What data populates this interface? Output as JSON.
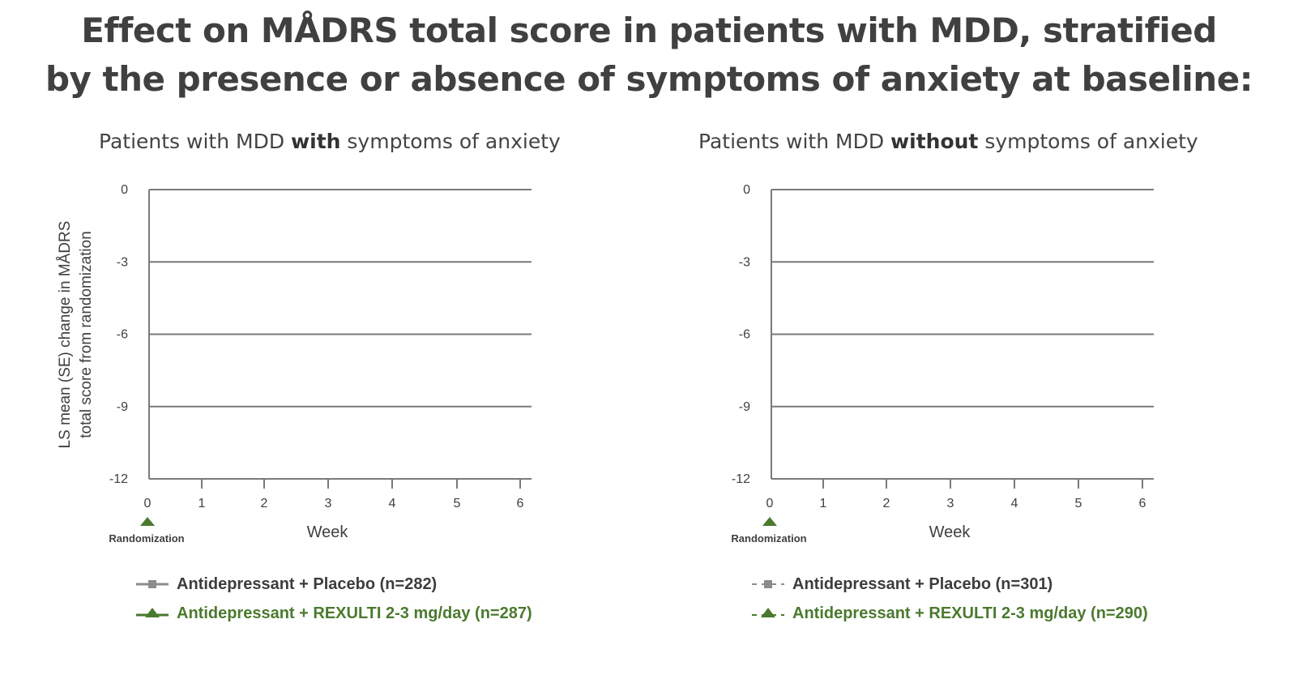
{
  "header": {
    "title_line1": "Effect on MÅDRS total score in patients with MDD, stratified",
    "title_line2": "by the presence or absence of symptoms of anxiety at baseline:"
  },
  "colors": {
    "placebo": "#8c8c8c",
    "rexulti": "#4a7a2e",
    "grid": "#7a7a7a",
    "text": "#404040"
  },
  "ylabel_line1": "LS mean (SE) change in MÅDRS",
  "ylabel_line2": "total score from randomization",
  "chart_data": [
    {
      "type": "line",
      "title_pre": "Patients with MDD ",
      "title_bold": "with",
      "title_post": " symptoms of anxiety",
      "xlabel": "Week",
      "ylabel": "LS mean (SE) change in MÅDRS total score from randomization",
      "x_ticks": [
        "0",
        "1",
        "2",
        "3",
        "4",
        "5",
        "6"
      ],
      "y_ticks": [
        "0",
        "-3",
        "-6",
        "-9",
        "-12"
      ],
      "xlim": [
        0,
        6
      ],
      "ylim": [
        -12,
        0
      ],
      "grid": true,
      "x_marker": {
        "x": 0,
        "label": "Randomization"
      },
      "series": [
        {
          "name": "Antidepressant + Placebo (n=282)",
          "style": "solid",
          "marker": "square",
          "values": []
        },
        {
          "name": "Antidepressant + REXULTI 2-3 mg/day (n=287)",
          "style": "solid",
          "marker": "triangle",
          "values": []
        }
      ]
    },
    {
      "type": "line",
      "title_pre": "Patients with MDD ",
      "title_bold": "without",
      "title_post": " symptoms of anxiety",
      "xlabel": "Week",
      "x_ticks": [
        "0",
        "1",
        "2",
        "3",
        "4",
        "5",
        "6"
      ],
      "y_ticks": [
        "0",
        "-3",
        "-6",
        "-9",
        "-12"
      ],
      "xlim": [
        0,
        6
      ],
      "ylim": [
        -12,
        0
      ],
      "grid": true,
      "x_marker": {
        "x": 0,
        "label": "Randomization"
      },
      "series": [
        {
          "name": "Antidepressant + Placebo (n=301)",
          "style": "dashed",
          "marker": "square",
          "values": []
        },
        {
          "name": "Antidepressant + REXULTI 2-3 mg/day (n=290)",
          "style": "dashed",
          "marker": "triangle",
          "values": []
        }
      ]
    }
  ]
}
